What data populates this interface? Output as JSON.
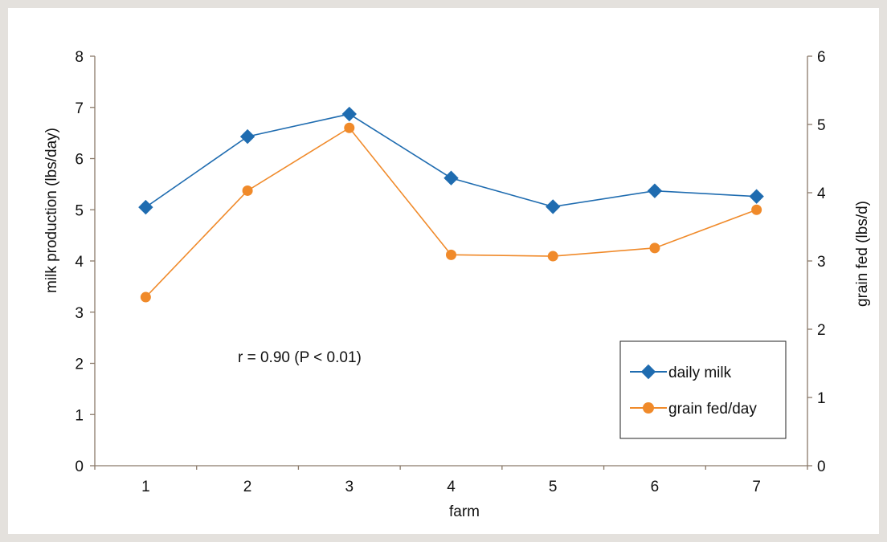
{
  "chart_data": {
    "type": "line",
    "x": [
      1,
      2,
      3,
      4,
      5,
      6,
      7
    ],
    "xlabel": "farm",
    "ylabel_left": "milk production (lbs/day)",
    "ylabel_right": "grain fed (lbs/d)",
    "ylim_left": [
      0,
      8
    ],
    "ylim_right": [
      0,
      6
    ],
    "yticks_left": [
      0,
      1,
      2,
      3,
      4,
      5,
      6,
      7,
      8
    ],
    "yticks_right": [
      0,
      1,
      2,
      3,
      4,
      5,
      6
    ],
    "grid": false,
    "legend_position": "bottom-right",
    "annotation": "r = 0.90 (P < 0.01)",
    "series": [
      {
        "name": "daily milk",
        "axis": "left",
        "marker": "diamond",
        "color": "#1f6cb0",
        "values": [
          5.05,
          6.43,
          6.87,
          5.62,
          5.06,
          5.37,
          5.26
        ]
      },
      {
        "name": "grain fed/day",
        "axis": "right",
        "marker": "circle",
        "color": "#f08a2a",
        "values": [
          2.47,
          4.03,
          4.95,
          3.09,
          3.07,
          3.19,
          3.75
        ]
      }
    ]
  },
  "colors": {
    "axis": "#8a7a6a",
    "background": "#e4e1dd"
  }
}
